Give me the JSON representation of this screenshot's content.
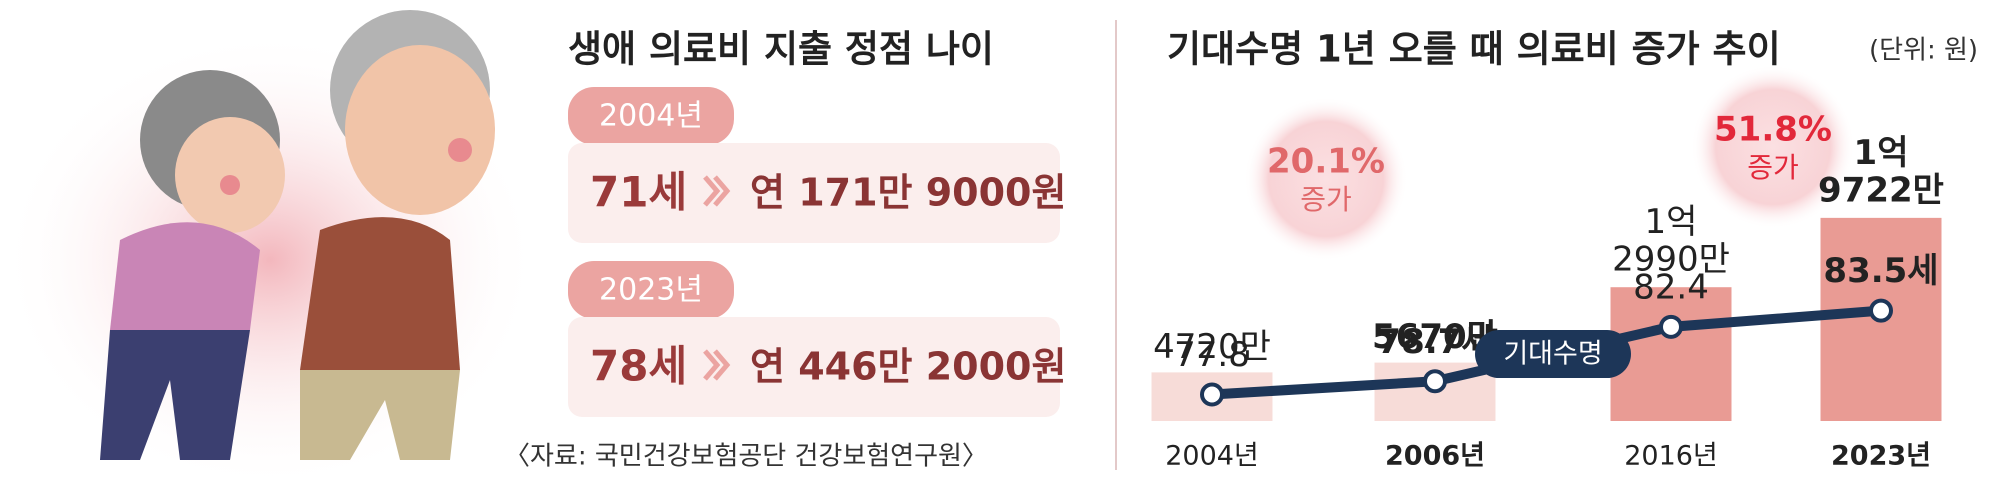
{
  "left_panel": {
    "title": "생애 의료비 지출 정점 나이",
    "rows": [
      {
        "year": "2004년",
        "age": "71세",
        "cost": "연 171만 9000원"
      },
      {
        "year": "2023년",
        "age": "78세",
        "cost": "연 446만 2000원"
      }
    ],
    "source": "〈자료: 국민건강보험공단 건강보험연구원〉"
  },
  "chart_data": {
    "type": "bar",
    "title": "기대수명 1년 오를 때 의료비 증가 추이",
    "unit": "(단위: 원)",
    "categories": [
      "2004년",
      "2006년",
      "2016년",
      "2023년"
    ],
    "highlight": [
      1,
      3
    ],
    "values": [
      4720,
      5670,
      12990,
      19722
    ],
    "value_labels": [
      "4720만",
      "5670만",
      "1억\n2990만",
      "1억\n9722만"
    ],
    "colors": [
      "#f7dcd8",
      "#f7dcd8",
      "#e99b94",
      "#e99b94"
    ],
    "ylim": [
      0,
      20000
    ],
    "line": {
      "name": "기대수명",
      "color": "#1d3658",
      "axis": "y2",
      "values": [
        77.8,
        78.7,
        82.4,
        83.5
      ],
      "value_labels": [
        "77.8",
        "78.7세",
        "82.4",
        "83.5세"
      ]
    },
    "y2lim": [
      76,
      90
    ],
    "annotations": [
      {
        "text": "20.1%",
        "sub": "증가",
        "color": "#e0686a"
      },
      {
        "text": "51.8%",
        "sub": "증가",
        "color": "#e2283a"
      }
    ]
  }
}
